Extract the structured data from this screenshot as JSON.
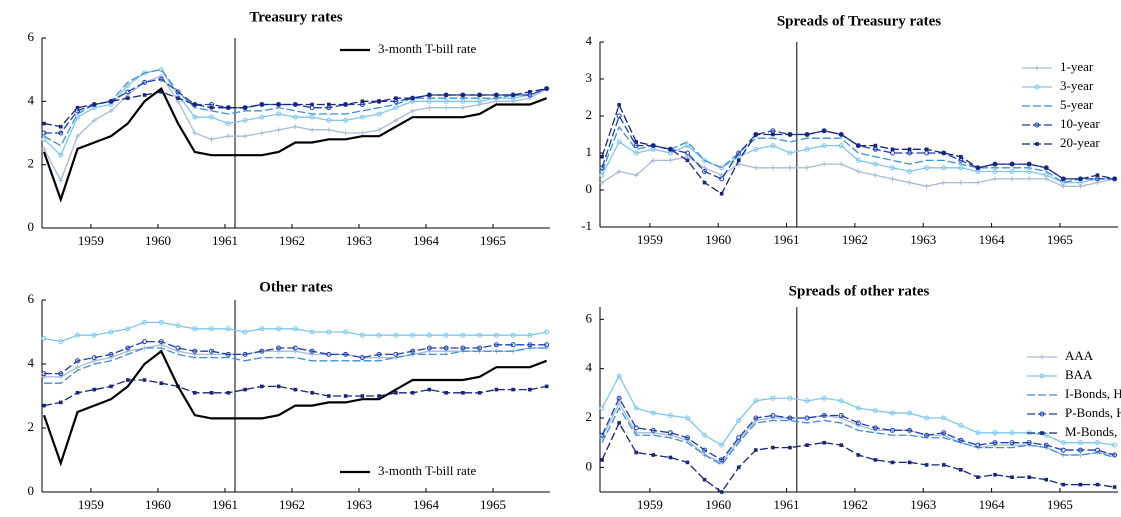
{
  "chart_data": [
    {
      "type": "line",
      "title": "Treasury rates",
      "legend": "upper right",
      "x": [
        1958.3,
        1958.55,
        1958.8,
        1959.05,
        1959.3,
        1959.55,
        1959.8,
        1960.05,
        1960.3,
        1960.55,
        1960.8,
        1961.05,
        1961.3,
        1961.55,
        1961.8,
        1962.05,
        1962.3,
        1962.55,
        1962.8,
        1963.05,
        1963.3,
        1963.55,
        1963.8,
        1964.05,
        1964.3,
        1964.55,
        1964.8,
        1965.05,
        1965.3,
        1965.55,
        1965.8
      ],
      "xlim": [
        1958.27,
        1965.85
      ],
      "xticks": [
        1959,
        1960,
        1961,
        1962,
        1963,
        1964,
        1965
      ],
      "vline": 1961.15,
      "ylim": [
        0,
        6
      ],
      "yticks": [
        0,
        2,
        4,
        6
      ],
      "series": [
        {
          "color": "#a9b9d6",
          "marker": "plus",
          "linestyle": "solid",
          "values": [
            2.5,
            1.5,
            2.9,
            3.4,
            3.7,
            4.2,
            4.6,
            4.8,
            4.0,
            3.0,
            2.8,
            2.9,
            2.9,
            3.0,
            3.1,
            3.2,
            3.1,
            3.1,
            3.0,
            3.0,
            3.1,
            3.4,
            3.7,
            3.8,
            3.8,
            3.8,
            3.9,
            4.0,
            4.0,
            4.1,
            4.4
          ]
        },
        {
          "color": "#7fc7ee",
          "marker": "circle",
          "linestyle": "solid",
          "values": [
            2.8,
            2.3,
            3.5,
            3.8,
            3.9,
            4.5,
            4.9,
            5.0,
            4.2,
            3.5,
            3.5,
            3.3,
            3.4,
            3.5,
            3.6,
            3.5,
            3.5,
            3.4,
            3.4,
            3.5,
            3.6,
            3.8,
            4.0,
            4.0,
            4.0,
            4.0,
            4.0,
            4.1,
            4.1,
            4.2,
            4.4
          ]
        },
        {
          "color": "#3b8fd8",
          "marker": "none",
          "linestyle": "dashed",
          "values": [
            2.9,
            2.6,
            3.6,
            3.9,
            4.0,
            4.6,
            4.9,
            5.0,
            4.3,
            3.8,
            3.7,
            3.6,
            3.7,
            3.7,
            3.8,
            3.7,
            3.6,
            3.6,
            3.6,
            3.7,
            3.8,
            3.9,
            4.1,
            4.1,
            4.1,
            4.1,
            4.1,
            4.1,
            4.2,
            4.2,
            4.4
          ]
        },
        {
          "color": "#1c3fb3",
          "marker": "circle",
          "linestyle": "dashed",
          "values": [
            3.0,
            3.0,
            3.7,
            3.9,
            4.0,
            4.3,
            4.6,
            4.7,
            4.3,
            3.9,
            3.9,
            3.8,
            3.8,
            3.9,
            3.9,
            3.9,
            3.8,
            3.8,
            3.9,
            3.9,
            4.0,
            4.0,
            4.1,
            4.2,
            4.2,
            4.2,
            4.2,
            4.2,
            4.2,
            4.2,
            4.4
          ]
        },
        {
          "color": "#1a237e",
          "marker": "square",
          "linestyle": "dashed",
          "values": [
            3.3,
            3.2,
            3.8,
            3.9,
            4.0,
            4.1,
            4.2,
            4.3,
            4.1,
            3.9,
            3.8,
            3.8,
            3.8,
            3.9,
            3.9,
            3.9,
            3.9,
            3.9,
            3.9,
            4.0,
            4.0,
            4.1,
            4.1,
            4.2,
            4.2,
            4.2,
            4.2,
            4.2,
            4.2,
            4.3,
            4.4
          ]
        },
        {
          "name": "3-month T-bill rate",
          "color": "#000000",
          "marker": "none",
          "linestyle": "bold",
          "values": [
            2.4,
            0.9,
            2.5,
            2.7,
            2.9,
            3.3,
            4.0,
            4.4,
            3.3,
            2.4,
            2.3,
            2.3,
            2.3,
            2.3,
            2.4,
            2.7,
            2.7,
            2.8,
            2.8,
            2.9,
            2.9,
            3.2,
            3.5,
            3.5,
            3.5,
            3.5,
            3.6,
            3.9,
            3.9,
            3.9,
            4.1
          ]
        }
      ]
    },
    {
      "type": "line",
      "title": "Spreads of Treasury rates",
      "legend": "right",
      "x": [
        1958.3,
        1958.55,
        1958.8,
        1959.05,
        1959.3,
        1959.55,
        1959.8,
        1960.05,
        1960.3,
        1960.55,
        1960.8,
        1961.05,
        1961.3,
        1961.55,
        1961.8,
        1962.05,
        1962.3,
        1962.55,
        1962.8,
        1963.05,
        1963.3,
        1963.55,
        1963.8,
        1964.05,
        1964.3,
        1964.55,
        1964.8,
        1965.05,
        1965.3,
        1965.55,
        1965.8
      ],
      "xlim": [
        1958.27,
        1965.85
      ],
      "xticks": [
        1959,
        1960,
        1961,
        1962,
        1963,
        1964,
        1965
      ],
      "vline": 1961.15,
      "ylim": [
        -1,
        4
      ],
      "yticks": [
        -1,
        0,
        1,
        2,
        3,
        4
      ],
      "series": [
        {
          "name": "1-year",
          "color": "#a9b9d6",
          "marker": "plus",
          "linestyle": "solid",
          "values": [
            0.2,
            0.5,
            0.4,
            0.8,
            0.8,
            0.9,
            0.6,
            0.4,
            0.7,
            0.6,
            0.6,
            0.6,
            0.6,
            0.7,
            0.7,
            0.5,
            0.4,
            0.3,
            0.2,
            0.1,
            0.2,
            0.2,
            0.2,
            0.3,
            0.3,
            0.3,
            0.3,
            0.1,
            0.1,
            0.2,
            0.3
          ]
        },
        {
          "name": "3-year",
          "color": "#7fc7ee",
          "marker": "circle",
          "linestyle": "solid",
          "values": [
            0.4,
            1.3,
            1.0,
            1.1,
            1.0,
            1.2,
            0.8,
            0.6,
            0.9,
            1.1,
            1.2,
            1.0,
            1.1,
            1.2,
            1.2,
            0.8,
            0.7,
            0.6,
            0.5,
            0.6,
            0.6,
            0.6,
            0.5,
            0.5,
            0.5,
            0.5,
            0.4,
            0.2,
            0.2,
            0.3,
            0.3
          ]
        },
        {
          "name": "5-year",
          "color": "#3b8fd8",
          "marker": "none",
          "linestyle": "dashed",
          "values": [
            0.5,
            1.7,
            1.1,
            1.2,
            1.1,
            1.3,
            0.8,
            0.6,
            1.0,
            1.4,
            1.4,
            1.3,
            1.4,
            1.4,
            1.4,
            1.0,
            0.9,
            0.8,
            0.7,
            0.8,
            0.8,
            0.7,
            0.6,
            0.6,
            0.6,
            0.6,
            0.5,
            0.2,
            0.3,
            0.3,
            0.3
          ]
        },
        {
          "name": "10-year",
          "color": "#1c3fb3",
          "marker": "circle",
          "linestyle": "dashed",
          "values": [
            0.6,
            2.0,
            1.2,
            1.2,
            1.1,
            1.0,
            0.5,
            0.3,
            1.0,
            1.5,
            1.6,
            1.5,
            1.5,
            1.6,
            1.5,
            1.2,
            1.1,
            1.0,
            1.0,
            1.0,
            1.0,
            0.8,
            0.6,
            0.7,
            0.7,
            0.7,
            0.6,
            0.3,
            0.3,
            0.3,
            0.3
          ]
        },
        {
          "name": "20-year",
          "color": "#1a237e",
          "marker": "square",
          "linestyle": "dashed",
          "values": [
            0.9,
            2.3,
            1.3,
            1.2,
            1.1,
            0.8,
            0.2,
            -0.1,
            0.8,
            1.5,
            1.5,
            1.5,
            1.5,
            1.6,
            1.5,
            1.2,
            1.2,
            1.1,
            1.1,
            1.1,
            1.0,
            0.9,
            0.6,
            0.7,
            0.7,
            0.7,
            0.6,
            0.3,
            0.3,
            0.4,
            0.3
          ]
        }
      ]
    },
    {
      "type": "line",
      "title": "Other rates",
      "legend": "lower right",
      "x": [
        1958.3,
        1958.55,
        1958.8,
        1959.05,
        1959.3,
        1959.55,
        1959.8,
        1960.05,
        1960.3,
        1960.55,
        1960.8,
        1961.05,
        1961.3,
        1961.55,
        1961.8,
        1962.05,
        1962.3,
        1962.55,
        1962.8,
        1963.05,
        1963.3,
        1963.55,
        1963.8,
        1964.05,
        1964.3,
        1964.55,
        1964.8,
        1965.05,
        1965.3,
        1965.55,
        1965.8
      ],
      "xlim": [
        1958.27,
        1965.85
      ],
      "xticks": [
        1959,
        1960,
        1961,
        1962,
        1963,
        1964,
        1965
      ],
      "vline": 1961.15,
      "ylim": [
        0,
        6
      ],
      "yticks": [
        0,
        2,
        4,
        6
      ],
      "series": [
        {
          "color": "#7fc7ee",
          "marker": "circle",
          "linestyle": "solid",
          "values": [
            4.8,
            4.7,
            4.9,
            4.9,
            5.0,
            5.1,
            5.3,
            5.3,
            5.2,
            5.1,
            5.1,
            5.1,
            5.0,
            5.1,
            5.1,
            5.1,
            5.0,
            5.0,
            5.0,
            4.9,
            4.9,
            4.9,
            4.9,
            4.9,
            4.9,
            4.9,
            4.9,
            4.9,
            4.9,
            4.9,
            5.0
          ]
        },
        {
          "color": "#a9b9d6",
          "marker": "plus",
          "linestyle": "solid",
          "values": [
            3.6,
            3.6,
            3.9,
            4.1,
            4.2,
            4.4,
            4.5,
            4.6,
            4.4,
            4.3,
            4.3,
            4.3,
            4.3,
            4.4,
            4.4,
            4.4,
            4.3,
            4.3,
            4.3,
            4.2,
            4.2,
            4.2,
            4.3,
            4.4,
            4.4,
            4.4,
            4.4,
            4.4,
            4.4,
            4.5,
            4.5
          ]
        },
        {
          "color": "#3b8fd8",
          "marker": "none",
          "linestyle": "dashed",
          "values": [
            3.4,
            3.4,
            3.8,
            4.0,
            4.1,
            4.3,
            4.5,
            4.5,
            4.3,
            4.2,
            4.2,
            4.2,
            4.1,
            4.2,
            4.2,
            4.2,
            4.1,
            4.1,
            4.1,
            4.1,
            4.1,
            4.2,
            4.3,
            4.3,
            4.3,
            4.4,
            4.4,
            4.4,
            4.4,
            4.5,
            4.5
          ]
        },
        {
          "color": "#1c3fb3",
          "marker": "circle",
          "linestyle": "dashed",
          "values": [
            3.7,
            3.7,
            4.1,
            4.2,
            4.3,
            4.5,
            4.7,
            4.7,
            4.5,
            4.4,
            4.4,
            4.3,
            4.3,
            4.4,
            4.5,
            4.5,
            4.4,
            4.3,
            4.3,
            4.2,
            4.3,
            4.3,
            4.4,
            4.5,
            4.5,
            4.5,
            4.5,
            4.6,
            4.6,
            4.6,
            4.6
          ]
        },
        {
          "color": "#1a237e",
          "marker": "square",
          "linestyle": "dashed",
          "values": [
            2.7,
            2.8,
            3.1,
            3.2,
            3.3,
            3.5,
            3.5,
            3.4,
            3.3,
            3.1,
            3.1,
            3.1,
            3.2,
            3.3,
            3.3,
            3.2,
            3.1,
            3.0,
            3.0,
            3.0,
            3.0,
            3.1,
            3.1,
            3.2,
            3.1,
            3.1,
            3.1,
            3.2,
            3.2,
            3.2,
            3.3
          ]
        },
        {
          "name": "3-month T-bill rate",
          "color": "#000000",
          "marker": "none",
          "linestyle": "bold",
          "values": [
            2.4,
            0.9,
            2.5,
            2.7,
            2.9,
            3.3,
            4.0,
            4.4,
            3.3,
            2.4,
            2.3,
            2.3,
            2.3,
            2.3,
            2.4,
            2.7,
            2.7,
            2.8,
            2.8,
            2.9,
            2.9,
            3.2,
            3.5,
            3.5,
            3.5,
            3.5,
            3.6,
            3.9,
            3.9,
            3.9,
            4.1
          ]
        }
      ]
    },
    {
      "type": "line",
      "title": "Spreads of other rates",
      "legend": "center right",
      "x": [
        1958.3,
        1958.55,
        1958.8,
        1959.05,
        1959.3,
        1959.55,
        1959.8,
        1960.05,
        1960.3,
        1960.55,
        1960.8,
        1961.05,
        1961.3,
        1961.55,
        1961.8,
        1962.05,
        1962.3,
        1962.55,
        1962.8,
        1963.05,
        1963.3,
        1963.55,
        1963.8,
        1964.05,
        1964.3,
        1964.55,
        1964.8,
        1965.05,
        1965.3,
        1965.55,
        1965.8
      ],
      "xlim": [
        1958.27,
        1965.85
      ],
      "xticks": [
        1959,
        1960,
        1961,
        1962,
        1963,
        1964,
        1965
      ],
      "vline": 1961.15,
      "ylim": [
        -1,
        6.5
      ],
      "yticks": [
        0,
        2,
        4,
        6
      ],
      "series": [
        {
          "name": "AAA",
          "color": "#a9b9d6",
          "marker": "plus",
          "linestyle": "solid",
          "values": [
            1.2,
            2.6,
            1.4,
            1.4,
            1.3,
            1.1,
            0.5,
            0.2,
            1.1,
            1.9,
            2.0,
            2.0,
            2.0,
            2.1,
            2.0,
            1.7,
            1.5,
            1.5,
            1.5,
            1.3,
            1.3,
            1.0,
            0.8,
            0.9,
            0.9,
            0.9,
            0.8,
            0.5,
            0.5,
            0.6,
            0.5
          ]
        },
        {
          "name": "BAA",
          "color": "#7fc7ee",
          "marker": "circle",
          "linestyle": "solid",
          "values": [
            2.4,
            3.7,
            2.4,
            2.2,
            2.1,
            2.0,
            1.3,
            0.9,
            1.9,
            2.7,
            2.8,
            2.8,
            2.7,
            2.8,
            2.7,
            2.4,
            2.3,
            2.2,
            2.2,
            2.0,
            2.0,
            1.7,
            1.4,
            1.4,
            1.4,
            1.4,
            1.3,
            1.0,
            1.0,
            1.0,
            0.9
          ]
        },
        {
          "name": "I-Bonds, Highest",
          "color": "#3b8fd8",
          "marker": "none",
          "linestyle": "dashed",
          "values": [
            1.0,
            2.4,
            1.3,
            1.3,
            1.2,
            1.0,
            0.5,
            0.1,
            1.0,
            1.8,
            1.9,
            1.9,
            1.8,
            1.9,
            1.8,
            1.5,
            1.4,
            1.3,
            1.3,
            1.2,
            1.2,
            1.0,
            0.8,
            0.8,
            0.8,
            0.9,
            0.8,
            0.5,
            0.5,
            0.6,
            0.4
          ]
        },
        {
          "name": "P-Bonds, Highest",
          "color": "#1c3fb3",
          "marker": "circle",
          "linestyle": "dashed",
          "values": [
            1.3,
            2.8,
            1.6,
            1.5,
            1.4,
            1.2,
            0.7,
            0.3,
            1.2,
            2.0,
            2.1,
            2.0,
            2.0,
            2.1,
            2.1,
            1.8,
            1.6,
            1.5,
            1.5,
            1.3,
            1.4,
            1.1,
            0.9,
            1.0,
            1.0,
            1.0,
            0.9,
            0.7,
            0.7,
            0.7,
            0.5
          ]
        },
        {
          "name": "M-Bonds, Highest",
          "color": "#1a237e",
          "marker": "square",
          "linestyle": "dashed",
          "values": [
            0.3,
            1.8,
            0.6,
            0.5,
            0.4,
            0.2,
            -0.5,
            -1.0,
            0.0,
            0.7,
            0.8,
            0.8,
            0.9,
            1.0,
            0.9,
            0.5,
            0.3,
            0.2,
            0.2,
            0.1,
            0.1,
            -0.1,
            -0.4,
            -0.3,
            -0.4,
            -0.4,
            -0.5,
            -0.7,
            -0.7,
            -0.7,
            -0.8
          ]
        }
      ]
    }
  ]
}
